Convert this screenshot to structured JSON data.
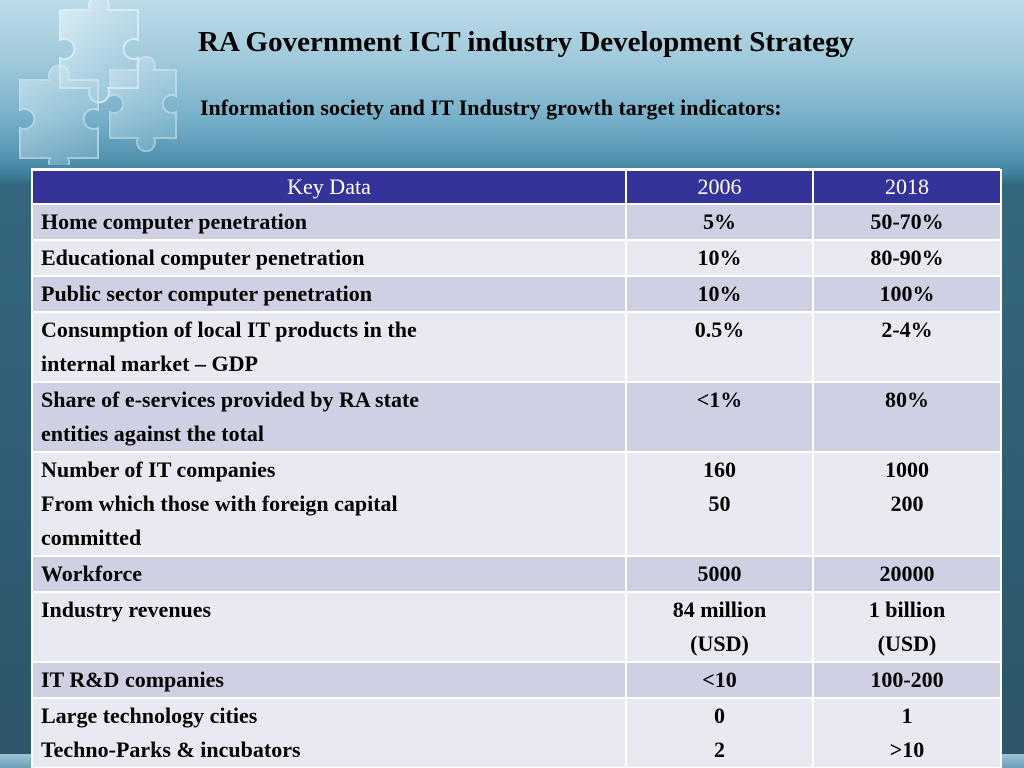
{
  "title": "RA Government ICT industry Development Strategy",
  "subtitle": "Information society and IT Industry growth target indicators:",
  "table": {
    "headers": [
      "Key Data",
      "2006",
      "2018"
    ],
    "rows": [
      {
        "label": [
          "Home computer penetration"
        ],
        "v2006": [
          "5%"
        ],
        "v2018": [
          "50-70%"
        ]
      },
      {
        "label": [
          "Educational computer penetration"
        ],
        "v2006": [
          "10%"
        ],
        "v2018": [
          "80-90%"
        ]
      },
      {
        "label": [
          "Public sector computer penetration"
        ],
        "v2006": [
          "10%"
        ],
        "v2018": [
          "100%"
        ]
      },
      {
        "label": [
          "Consumption of local IT products in the",
          "internal market – GDP"
        ],
        "v2006": [
          "0.5%"
        ],
        "v2018": [
          "2-4%"
        ]
      },
      {
        "label": [
          "Share of e-services provided by RA state",
          "entities against the total"
        ],
        "v2006": [
          "<1%"
        ],
        "v2018": [
          "80%"
        ]
      },
      {
        "label": [
          "Number of IT companies",
          "From which those with foreign capital",
          "committed"
        ],
        "v2006": [
          "160",
          "50"
        ],
        "v2018": [
          "1000",
          "200"
        ]
      },
      {
        "label": [
          "Workforce"
        ],
        "v2006": [
          "5000"
        ],
        "v2018": [
          "20000"
        ]
      },
      {
        "label": [
          "Industry revenues"
        ],
        "v2006": [
          "84 million",
          "(USD)"
        ],
        "v2018": [
          "1 billion",
          "(USD)"
        ]
      },
      {
        "label": [
          "IT R&D companies"
        ],
        "v2006": [
          "<10"
        ],
        "v2018": [
          "100-200"
        ]
      },
      {
        "label": [
          "Large technology cities",
          "Techno-Parks & incubators"
        ],
        "v2006": [
          "0",
          "2"
        ],
        "v2018": [
          "1",
          ">10"
        ]
      }
    ]
  },
  "colors": {
    "header_bg": "#333399",
    "row_odd": "#cfd0e3",
    "row_even": "#e9e9f1"
  },
  "icons": {
    "decoration": "puzzle-pieces-icon"
  }
}
